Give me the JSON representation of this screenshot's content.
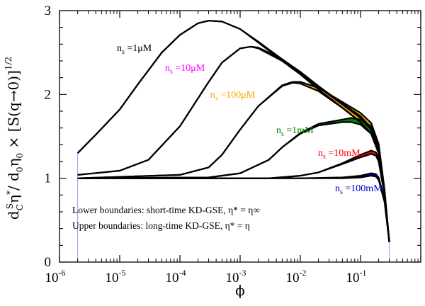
{
  "chart_data": {
    "type": "line",
    "xscale": "log",
    "xlim": [
      1e-06,
      1
    ],
    "ylim": [
      0,
      3
    ],
    "xlabel": "ϕ",
    "ylabel": "d_C^S η* / d_0 η_0 × [S(q→0)]^1/2",
    "x_ticks": [
      {
        "base": "10",
        "exp": "-6"
      },
      {
        "base": "10",
        "exp": "-5"
      },
      {
        "base": "10",
        "exp": "-4"
      },
      {
        "base": "10",
        "exp": "-3"
      },
      {
        "base": "10",
        "exp": "-2"
      },
      {
        "base": "10",
        "exp": "-1"
      }
    ],
    "y_ticks": [
      "0",
      "1",
      "2",
      "3"
    ],
    "grid": false,
    "series": [
      {
        "name": "n_s = 1μM",
        "color": "#000000",
        "label_parts": {
          "n": "n",
          "sub": "s",
          "rest": " =1μM"
        },
        "x": [
          2e-06,
          4e-06,
          1e-05,
          2e-05,
          5e-05,
          0.0001,
          0.0002,
          0.0003,
          0.0005,
          0.001,
          0.002,
          0.005,
          0.01,
          0.02,
          0.05,
          0.1,
          0.15,
          0.2,
          0.25,
          0.3
        ],
        "lower": [
          1.3,
          1.52,
          1.82,
          2.12,
          2.5,
          2.71,
          2.85,
          2.88,
          2.87,
          2.78,
          2.62,
          2.4,
          2.24,
          2.06,
          1.84,
          1.67,
          1.53,
          1.3,
          0.82,
          0.24
        ],
        "upper": [
          1.3,
          1.52,
          1.82,
          2.12,
          2.5,
          2.71,
          2.85,
          2.88,
          2.87,
          2.78,
          2.63,
          2.42,
          2.26,
          2.09,
          1.88,
          1.72,
          1.58,
          1.35,
          0.84,
          0.24
        ]
      },
      {
        "name": "n_s = 10μM",
        "color": "#ff00ff",
        "label_parts": {
          "n": "n",
          "sub": "s",
          "rest": " =10μM"
        },
        "x": [
          2e-06,
          1e-05,
          3e-05,
          0.0001,
          0.0003,
          0.0005,
          0.001,
          0.0015,
          0.002,
          0.005,
          0.01,
          0.02,
          0.05,
          0.1,
          0.15,
          0.2,
          0.25,
          0.3
        ],
        "lower": [
          1.04,
          1.09,
          1.22,
          1.62,
          2.15,
          2.38,
          2.55,
          2.57,
          2.55,
          2.4,
          2.24,
          2.06,
          1.84,
          1.67,
          1.53,
          1.3,
          0.82,
          0.24
        ],
        "upper": [
          1.04,
          1.09,
          1.22,
          1.62,
          2.15,
          2.38,
          2.55,
          2.57,
          2.56,
          2.42,
          2.27,
          2.1,
          1.89,
          1.74,
          1.6,
          1.37,
          0.85,
          0.24
        ]
      },
      {
        "name": "n_s = 100μM",
        "color": "#ffa500",
        "label_parts": {
          "n": "n",
          "sub": "s",
          "rest": " =100μM"
        },
        "x": [
          2e-06,
          0.0001,
          0.0003,
          0.0005,
          0.001,
          0.002,
          0.005,
          0.0075,
          0.01,
          0.02,
          0.05,
          0.1,
          0.15,
          0.2,
          0.25,
          0.3
        ],
        "lower": [
          1.0,
          1.04,
          1.13,
          1.28,
          1.58,
          1.86,
          2.1,
          2.14,
          2.13,
          2.04,
          1.84,
          1.67,
          1.53,
          1.3,
          0.82,
          0.24
        ],
        "upper": [
          1.0,
          1.04,
          1.13,
          1.28,
          1.58,
          1.86,
          2.11,
          2.15,
          2.15,
          2.08,
          1.91,
          1.78,
          1.66,
          1.41,
          0.87,
          0.24
        ]
      },
      {
        "name": "n_s = 1mM",
        "color": "#008000",
        "label_parts": {
          "n": "n",
          "sub": "s",
          "rest": " =1mM"
        },
        "x": [
          2e-06,
          0.0003,
          0.001,
          0.003,
          0.005,
          0.01,
          0.02,
          0.05,
          0.07,
          0.1,
          0.15,
          0.2,
          0.25,
          0.3
        ],
        "lower": [
          1.0,
          1.01,
          1.06,
          1.22,
          1.37,
          1.53,
          1.63,
          1.67,
          1.67,
          1.64,
          1.53,
          1.3,
          0.82,
          0.24
        ],
        "upper": [
          1.0,
          1.01,
          1.06,
          1.22,
          1.37,
          1.54,
          1.65,
          1.7,
          1.72,
          1.7,
          1.62,
          1.39,
          0.86,
          0.24
        ]
      },
      {
        "name": "n_s = 10mM",
        "color": "#ff0000",
        "label_parts": {
          "n": "n",
          "sub": "s",
          "rest": " =10mM"
        },
        "x": [
          2e-06,
          0.003,
          0.01,
          0.02,
          0.05,
          0.1,
          0.15,
          0.18,
          0.2,
          0.25,
          0.3
        ],
        "lower": [
          1.0,
          1.0,
          1.03,
          1.07,
          1.17,
          1.25,
          1.29,
          1.27,
          1.2,
          0.8,
          0.24
        ],
        "upper": [
          1.0,
          1.0,
          1.03,
          1.07,
          1.18,
          1.28,
          1.33,
          1.31,
          1.24,
          0.82,
          0.24
        ]
      },
      {
        "name": "n_s = 100mM",
        "color": "#0000cd",
        "label_parts": {
          "n": "n",
          "sub": "s",
          "rest": " =100mM"
        },
        "x": [
          2e-06,
          0.01,
          0.05,
          0.1,
          0.15,
          0.18,
          0.2,
          0.25,
          0.3
        ],
        "lower": [
          1.0,
          1.0,
          1.0,
          1.01,
          1.03,
          1.02,
          0.98,
          0.72,
          0.24
        ],
        "upper": [
          1.0,
          1.0,
          1.01,
          1.03,
          1.06,
          1.05,
          1.01,
          0.74,
          0.24
        ]
      }
    ],
    "annotations": [
      "Lower boundaries:  short-time KD-GSE, η* = η∞",
      "Upper boundaries:  long-time  KD-GSE, η* = η"
    ]
  }
}
